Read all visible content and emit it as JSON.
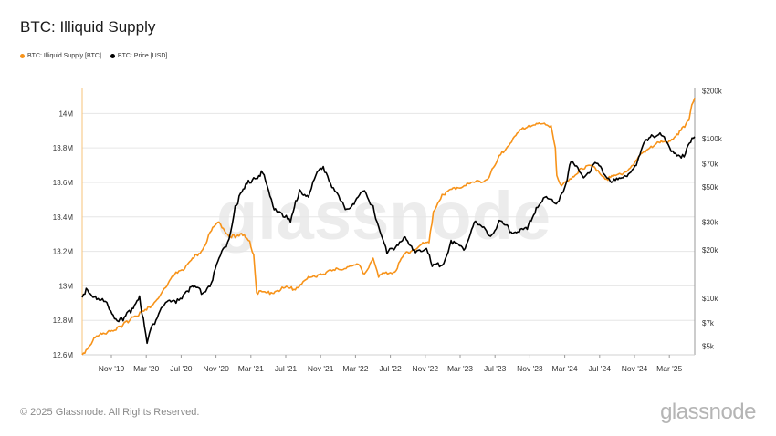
{
  "title": "BTC: Illiquid Supply",
  "legend": [
    {
      "label": "BTC: Illiquid Supply [BTC]",
      "color": "#f7931a"
    },
    {
      "label": "BTC: Price [USD]",
      "color": "#000000"
    }
  ],
  "watermark": "glassnode",
  "footer": "© 2025 Glassnode. All Rights Reserved.",
  "brand": "glassnode",
  "colors": {
    "supply": "#f7931a",
    "price": "#000000",
    "grid": "#e6e6e6"
  },
  "chart_data": {
    "type": "line",
    "x_labels": [
      "Nov '19",
      "Mar '20",
      "Jul '20",
      "Nov '20",
      "Mar '21",
      "Jul '21",
      "Nov '21",
      "Mar '22",
      "Jul '22",
      "Nov '22",
      "Mar '23",
      "Jul '23",
      "Nov '23",
      "Mar '24",
      "Jul '24",
      "Nov '24",
      "Mar '25"
    ],
    "x_range": [
      "2019-08-01",
      "2025-05-15"
    ],
    "left_axis": {
      "ticks": [
        12600000,
        12800000,
        13000000,
        13200000,
        13400000,
        13600000,
        13800000,
        14000000
      ],
      "tick_labels": [
        "12.6M",
        "12.8M",
        "13M",
        "13.2M",
        "13.4M",
        "13.6M",
        "13.8M",
        "14M"
      ],
      "range": [
        12600000,
        14150000
      ]
    },
    "right_axis": {
      "scale": "log",
      "ticks": [
        5000,
        7000,
        10000,
        20000,
        30000,
        50000,
        70000,
        100000,
        200000
      ],
      "tick_labels": [
        "$5k",
        "$7k",
        "$10k",
        "$20k",
        "$30k",
        "$50k",
        "$70k",
        "$100k",
        "$200k"
      ],
      "range": [
        4400,
        210000
      ]
    },
    "series": [
      {
        "name": "BTC: Illiquid Supply [BTC]",
        "axis": "left",
        "points": [
          [
            "2019-08-01",
            12600000
          ],
          [
            "2019-09-15",
            12700000
          ],
          [
            "2019-11-01",
            12740000
          ],
          [
            "2019-12-15",
            12760000
          ],
          [
            "2020-01-20",
            12820000
          ],
          [
            "2020-03-10",
            12860000
          ],
          [
            "2020-04-15",
            12920000
          ],
          [
            "2020-05-20",
            13000000
          ],
          [
            "2020-06-20",
            13080000
          ],
          [
            "2020-07-20",
            13100000
          ],
          [
            "2020-08-20",
            13160000
          ],
          [
            "2020-09-20",
            13210000
          ],
          [
            "2020-10-20",
            13320000
          ],
          [
            "2020-11-15",
            13370000
          ],
          [
            "2020-12-15",
            13300000
          ],
          [
            "2021-01-10",
            13280000
          ],
          [
            "2021-02-10",
            13300000
          ],
          [
            "2021-03-01",
            13260000
          ],
          [
            "2021-03-15",
            13180000
          ],
          [
            "2021-03-25",
            12960000
          ],
          [
            "2021-05-01",
            12960000
          ],
          [
            "2021-06-01",
            12970000
          ],
          [
            "2021-07-01",
            12990000
          ],
          [
            "2021-08-01",
            12980000
          ],
          [
            "2021-09-15",
            13040000
          ],
          [
            "2021-11-01",
            13070000
          ],
          [
            "2021-12-20",
            13090000
          ],
          [
            "2022-02-01",
            13110000
          ],
          [
            "2022-03-15",
            13120000
          ],
          [
            "2022-04-01",
            13070000
          ],
          [
            "2022-05-01",
            13160000
          ],
          [
            "2022-05-20",
            13050000
          ],
          [
            "2022-06-15",
            13080000
          ],
          [
            "2022-07-15",
            13080000
          ],
          [
            "2022-08-15",
            13180000
          ],
          [
            "2022-10-15",
            13240000
          ],
          [
            "2022-11-10",
            13250000
          ],
          [
            "2022-11-25",
            13430000
          ],
          [
            "2022-12-25",
            13530000
          ],
          [
            "2023-02-15",
            13570000
          ],
          [
            "2023-04-15",
            13600000
          ],
          [
            "2023-06-01",
            13620000
          ],
          [
            "2023-07-15",
            13760000
          ],
          [
            "2023-09-15",
            13890000
          ],
          [
            "2023-10-20",
            13930000
          ],
          [
            "2023-11-20",
            13940000
          ],
          [
            "2024-01-05",
            13930000
          ],
          [
            "2024-01-20",
            13800000
          ],
          [
            "2024-01-25",
            13640000
          ],
          [
            "2024-02-10",
            13580000
          ],
          [
            "2024-03-15",
            13620000
          ],
          [
            "2024-04-15",
            13680000
          ],
          [
            "2024-05-15",
            13700000
          ],
          [
            "2024-06-15",
            13670000
          ],
          [
            "2024-07-15",
            13620000
          ],
          [
            "2024-08-15",
            13640000
          ],
          [
            "2024-09-15",
            13660000
          ],
          [
            "2024-10-15",
            13700000
          ],
          [
            "2024-11-15",
            13770000
          ],
          [
            "2024-12-15",
            13810000
          ],
          [
            "2025-01-15",
            13830000
          ],
          [
            "2025-02-15",
            13840000
          ],
          [
            "2025-03-15",
            13880000
          ],
          [
            "2025-04-10",
            13920000
          ],
          [
            "2025-04-25",
            13960000
          ],
          [
            "2025-05-05",
            14050000
          ],
          [
            "2025-05-15",
            14090000
          ]
        ]
      },
      {
        "name": "BTC: Price [USD]",
        "axis": "right",
        "points": [
          [
            "2019-08-01",
            10100
          ],
          [
            "2019-08-15",
            11500
          ],
          [
            "2019-09-20",
            9800
          ],
          [
            "2019-10-25",
            9400
          ],
          [
            "2019-11-25",
            7400
          ],
          [
            "2019-12-20",
            7200
          ],
          [
            "2020-01-20",
            8600
          ],
          [
            "2020-02-15",
            10300
          ],
          [
            "2020-03-12",
            5200
          ],
          [
            "2020-03-20",
            6000
          ],
          [
            "2020-04-30",
            8700
          ],
          [
            "2020-05-20",
            9500
          ],
          [
            "2020-06-20",
            9300
          ],
          [
            "2020-07-25",
            11000
          ],
          [
            "2020-08-20",
            11700
          ],
          [
            "2020-09-20",
            10700
          ],
          [
            "2020-10-20",
            12500
          ],
          [
            "2020-11-20",
            18500
          ],
          [
            "2020-12-20",
            23500
          ],
          [
            "2021-01-10",
            38000
          ],
          [
            "2021-02-20",
            52000
          ],
          [
            "2021-03-15",
            57000
          ],
          [
            "2021-04-15",
            61000
          ],
          [
            "2021-05-20",
            38000
          ],
          [
            "2021-06-20",
            34000
          ],
          [
            "2021-07-20",
            30000
          ],
          [
            "2021-08-20",
            48000
          ],
          [
            "2021-09-20",
            43000
          ],
          [
            "2021-10-20",
            62000
          ],
          [
            "2021-11-10",
            67000
          ],
          [
            "2021-12-20",
            47000
          ],
          [
            "2022-01-25",
            36000
          ],
          [
            "2022-02-20",
            39000
          ],
          [
            "2022-03-28",
            47000
          ],
          [
            "2022-05-01",
            38000
          ],
          [
            "2022-05-15",
            30000
          ],
          [
            "2022-06-18",
            19000
          ],
          [
            "2022-08-15",
            24000
          ],
          [
            "2022-09-15",
            20000
          ],
          [
            "2022-11-01",
            20500
          ],
          [
            "2022-11-21",
            15800
          ],
          [
            "2022-12-31",
            16500
          ],
          [
            "2023-01-25",
            23000
          ],
          [
            "2023-03-10",
            20000
          ],
          [
            "2023-04-15",
            30000
          ],
          [
            "2023-06-15",
            25000
          ],
          [
            "2023-07-15",
            30500
          ],
          [
            "2023-08-20",
            26000
          ],
          [
            "2023-10-15",
            27000
          ],
          [
            "2023-11-15",
            37000
          ],
          [
            "2023-12-15",
            43000
          ],
          [
            "2024-01-23",
            39000
          ],
          [
            "2024-02-25",
            52000
          ],
          [
            "2024-03-14",
            72000
          ],
          [
            "2024-05-01",
            58000
          ],
          [
            "2024-06-05",
            71000
          ],
          [
            "2024-08-05",
            54000
          ],
          [
            "2024-09-10",
            57000
          ],
          [
            "2024-10-25",
            68000
          ],
          [
            "2024-11-25",
            97000
          ],
          [
            "2024-12-17",
            106000
          ],
          [
            "2025-01-20",
            105000
          ],
          [
            "2025-02-28",
            84000
          ],
          [
            "2025-04-08",
            77000
          ],
          [
            "2025-05-01",
            95000
          ],
          [
            "2025-05-15",
            103000
          ]
        ]
      }
    ]
  }
}
